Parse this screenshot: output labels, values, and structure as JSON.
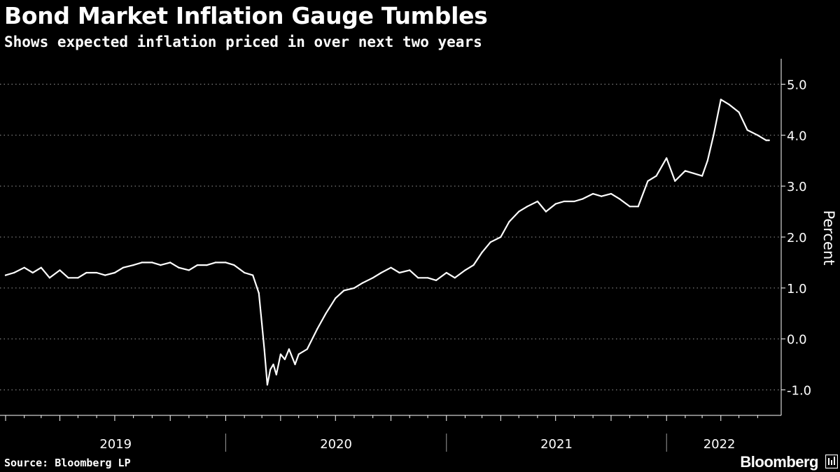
{
  "header": {
    "title": "Bond Market Inflation Gauge Tumbles",
    "subtitle": "Shows expected inflation priced in over next two years"
  },
  "footer": {
    "source": "Source: Bloomberg LP",
    "brand": "Bloomberg",
    "brand_icon": "bloomberg-terminal-icon"
  },
  "colors": {
    "background": "#000000",
    "line": "#ffffff",
    "grid": "#9a9a9a",
    "text": "#ffffff"
  },
  "chart_data": {
    "type": "line",
    "title": "Bond Market Inflation Gauge Tumbles",
    "subtitle": "Shows expected inflation priced in over next two years",
    "ylabel": "Percent",
    "ylim": [
      -1.5,
      5.5
    ],
    "yticks": [
      5.0,
      4.0,
      3.0,
      2.0,
      1.0,
      0.0,
      -1.0
    ],
    "ytick_labels": [
      "5.0",
      "4.0",
      "3.0",
      "2.0",
      "1.0",
      "0.0",
      "-1.0"
    ],
    "y_axis_position": "right",
    "xlim": [
      "2019-01-01",
      "2022-06-25"
    ],
    "x_year_labels": [
      {
        "label": "2019",
        "year": 2019
      },
      {
        "label": "2020",
        "year": 2020
      },
      {
        "label": "2021",
        "year": 2021
      },
      {
        "label": "2022",
        "year": 2022
      }
    ],
    "grid": "horizontal dotted",
    "series": [
      {
        "x": [
          "2019-01-01",
          "2019-01-15",
          "2019-02-01",
          "2019-02-15",
          "2019-03-01",
          "2019-03-15",
          "2019-04-01",
          "2019-04-15",
          "2019-05-01",
          "2019-05-15",
          "2019-06-01",
          "2019-06-15",
          "2019-07-01",
          "2019-07-15",
          "2019-08-01",
          "2019-08-15",
          "2019-09-01",
          "2019-09-15",
          "2019-10-01",
          "2019-10-15",
          "2019-11-01",
          "2019-11-15",
          "2019-12-01",
          "2019-12-15",
          "2020-01-01",
          "2020-01-15",
          "2020-02-01",
          "2020-02-15",
          "2020-02-25",
          "2020-03-01",
          "2020-03-05",
          "2020-03-10",
          "2020-03-15",
          "2020-03-20",
          "2020-03-25",
          "2020-04-01",
          "2020-04-08",
          "2020-04-15",
          "2020-04-25",
          "2020-05-01",
          "2020-05-15",
          "2020-06-01",
          "2020-06-15",
          "2020-07-01",
          "2020-07-15",
          "2020-08-01",
          "2020-08-15",
          "2020-09-01",
          "2020-09-15",
          "2020-10-01",
          "2020-10-15",
          "2020-11-01",
          "2020-11-15",
          "2020-12-01",
          "2020-12-15",
          "2021-01-01",
          "2021-01-15",
          "2021-02-01",
          "2021-02-15",
          "2021-03-01",
          "2021-03-15",
          "2021-04-01",
          "2021-04-15",
          "2021-05-01",
          "2021-05-15",
          "2021-06-01",
          "2021-06-15",
          "2021-07-01",
          "2021-07-15",
          "2021-08-01",
          "2021-08-15",
          "2021-09-01",
          "2021-09-15",
          "2021-10-01",
          "2021-10-15",
          "2021-11-01",
          "2021-11-15",
          "2021-12-01",
          "2021-12-15",
          "2022-01-01",
          "2022-01-15",
          "2022-02-01",
          "2022-02-15",
          "2022-03-01",
          "2022-03-10",
          "2022-03-20",
          "2022-04-01",
          "2022-04-15",
          "2022-05-01",
          "2022-05-15",
          "2022-06-01",
          "2022-06-15",
          "2022-06-20"
        ],
        "y": [
          1.25,
          1.3,
          1.4,
          1.3,
          1.4,
          1.2,
          1.35,
          1.2,
          1.2,
          1.3,
          1.3,
          1.25,
          1.3,
          1.4,
          1.45,
          1.5,
          1.5,
          1.45,
          1.5,
          1.4,
          1.35,
          1.45,
          1.45,
          1.5,
          1.5,
          1.45,
          1.3,
          1.25,
          0.9,
          0.3,
          -0.2,
          -0.9,
          -0.6,
          -0.5,
          -0.7,
          -0.3,
          -0.4,
          -0.2,
          -0.5,
          -0.3,
          -0.2,
          0.2,
          0.5,
          0.8,
          0.95,
          1.0,
          1.1,
          1.2,
          1.3,
          1.4,
          1.3,
          1.35,
          1.2,
          1.2,
          1.15,
          1.3,
          1.2,
          1.35,
          1.45,
          1.7,
          1.9,
          2.0,
          2.3,
          2.5,
          2.6,
          2.7,
          2.5,
          2.65,
          2.7,
          2.7,
          2.75,
          2.85,
          2.8,
          2.85,
          2.75,
          2.6,
          2.6,
          3.1,
          3.2,
          3.55,
          3.1,
          3.3,
          3.25,
          3.2,
          3.5,
          4.0,
          4.7,
          4.6,
          4.45,
          4.1,
          4.0,
          3.9,
          3.9
        ]
      }
    ]
  }
}
